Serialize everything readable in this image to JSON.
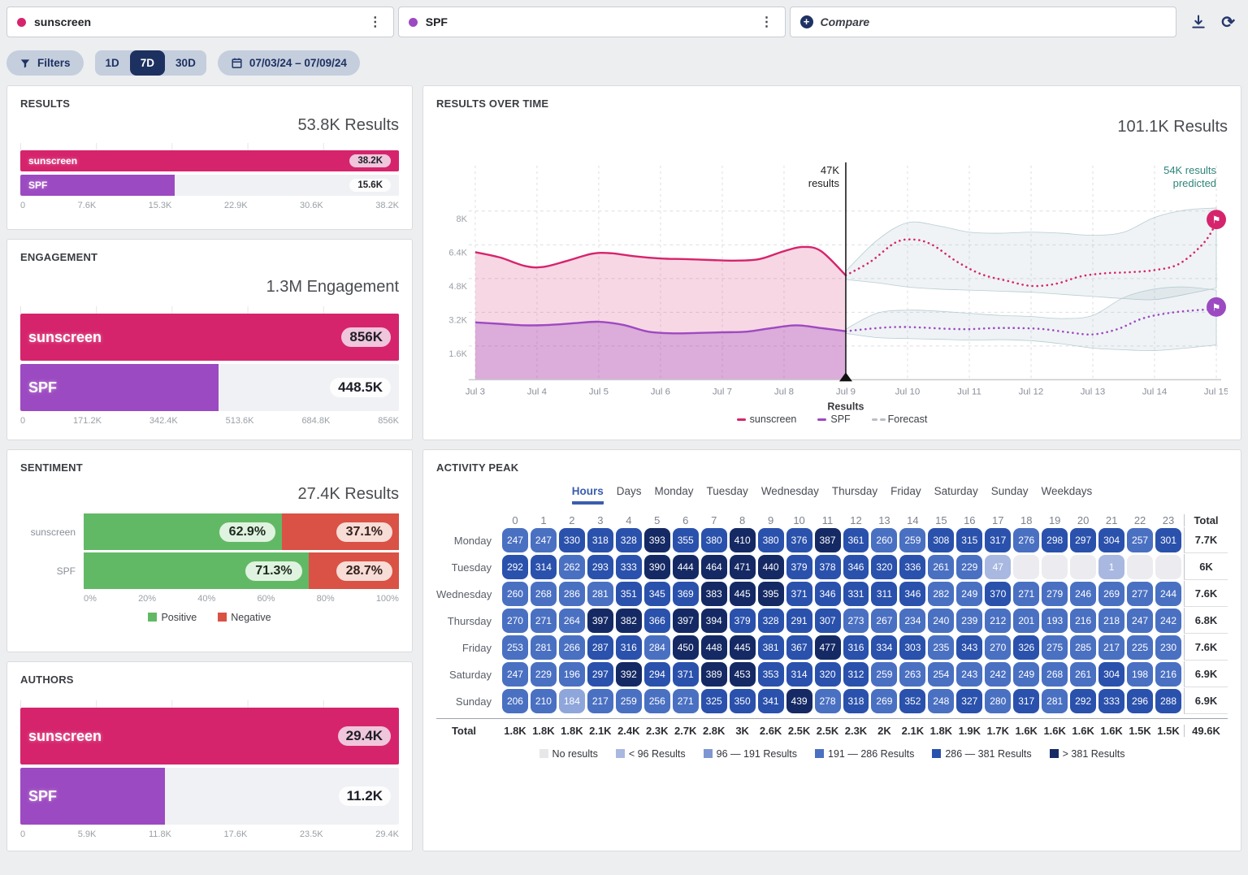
{
  "colors": {
    "pink": "#d6246c",
    "purple": "#9c4ac1",
    "navy": "#1d3160",
    "green": "#62b965",
    "red": "#d95245",
    "teal": "#2f857b",
    "forecast_gray": "#b9bec6"
  },
  "icons": {
    "kebab": "⋮",
    "plus": "+",
    "refresh": "⟳",
    "flag": "⚑"
  },
  "top_bar": {
    "queries": [
      {
        "label": "sunscreen",
        "color": "#d6246c"
      },
      {
        "label": "SPF",
        "color": "#9c4ac1"
      }
    ],
    "compare_label": "Compare"
  },
  "filters_bar": {
    "filters_label": "Filters",
    "ranges": [
      "1D",
      "7D",
      "30D"
    ],
    "active_range": "7D",
    "date_range": "07/03/24 – 07/09/24"
  },
  "panels": {
    "results": {
      "title": "RESULTS",
      "total": "53.8K Results",
      "bars": [
        {
          "label": "sunscreen",
          "value": "38.2K",
          "pct": 100,
          "badge": "pink"
        },
        {
          "label": "SPF",
          "value": "15.6K",
          "pct": 40.8,
          "badge": "white"
        }
      ],
      "axis": [
        "0",
        "7.6K",
        "15.3K",
        "22.9K",
        "30.6K",
        "38.2K"
      ]
    },
    "engagement": {
      "title": "ENGAGEMENT",
      "total": "1.3M Engagement",
      "bars": [
        {
          "label": "sunscreen",
          "value": "856K",
          "pct": 100,
          "badge": "pink"
        },
        {
          "label": "SPF",
          "value": "448.5K",
          "pct": 52.4,
          "badge": "white"
        }
      ],
      "axis": [
        "0",
        "171.2K",
        "342.4K",
        "513.6K",
        "684.8K",
        "856K"
      ]
    },
    "sentiment": {
      "title": "SENTIMENT",
      "total": "27.4K Results",
      "rows": [
        {
          "label": "sunscreen",
          "positive": "62.9%",
          "negative": "37.1%",
          "pos_pct": 62.9,
          "neg_pct": 37.1
        },
        {
          "label": "SPF",
          "positive": "71.3%",
          "negative": "28.7%",
          "pos_pct": 71.3,
          "neg_pct": 28.7
        }
      ],
      "axis": [
        "0%",
        "20%",
        "40%",
        "60%",
        "80%",
        "100%"
      ],
      "legend": {
        "positive": "Positive",
        "negative": "Negative"
      }
    },
    "authors": {
      "title": "AUTHORS",
      "bars": [
        {
          "label": "sunscreen",
          "value": "29.4K",
          "pct": 100,
          "badge": "pink"
        },
        {
          "label": "SPF",
          "value": "11.2K",
          "pct": 38.1,
          "badge": "white"
        }
      ],
      "axis": [
        "0",
        "5.9K",
        "11.8K",
        "17.6K",
        "23.5K",
        "29.4K"
      ]
    },
    "results_over_time": {
      "title": "RESULTS OVER TIME",
      "total": "101.1K Results",
      "annotation": {
        "line1": "47K",
        "line2": "results"
      },
      "prediction": {
        "line1": "54K results",
        "line2": "predicted"
      },
      "x_axis_title": "Results",
      "x_labels": [
        "Jul 3",
        "Jul 4",
        "Jul 5",
        "Jul 6",
        "Jul 7",
        "Jul 8",
        "Jul 9",
        "Jul 10",
        "Jul 11",
        "Jul 12",
        "Jul 13",
        "Jul 14",
        "Jul 15"
      ],
      "y_ticks": [
        {
          "label": "8K",
          "v": 8
        },
        {
          "label": "6.4K",
          "v": 6.4
        },
        {
          "label": "4.8K",
          "v": 4.8
        },
        {
          "label": "3.2K",
          "v": 3.2
        },
        {
          "label": "1.6K",
          "v": 1.6
        }
      ],
      "legend": [
        {
          "label": "sunscreen",
          "color": "#d6246c"
        },
        {
          "label": "SPF",
          "color": "#9c4ac1"
        },
        {
          "label": "Forecast",
          "color": "#b9bec6"
        }
      ],
      "chart_data": {
        "type": "line",
        "x_unit": "day-index (Jul 3 = 0 ... Jul 15 = 12)",
        "y_unit": "K results",
        "forecast_start_x": 6,
        "sunscreen_history": [
          [
            0,
            6.05
          ],
          [
            0.4,
            5.8
          ],
          [
            0.8,
            5.4
          ],
          [
            1.1,
            5.35
          ],
          [
            1.5,
            5.65
          ],
          [
            1.9,
            5.98
          ],
          [
            2.2,
            6.0
          ],
          [
            2.6,
            5.85
          ],
          [
            3,
            5.75
          ],
          [
            3.4,
            5.72
          ],
          [
            3.8,
            5.68
          ],
          [
            4.2,
            5.65
          ],
          [
            4.6,
            5.72
          ],
          [
            5,
            6.1
          ],
          [
            5.3,
            6.3
          ],
          [
            5.6,
            6.1
          ],
          [
            6,
            4.95
          ]
        ],
        "spf_history": [
          [
            0,
            2.72
          ],
          [
            0.4,
            2.65
          ],
          [
            0.8,
            2.58
          ],
          [
            1.2,
            2.6
          ],
          [
            1.6,
            2.68
          ],
          [
            2,
            2.75
          ],
          [
            2.4,
            2.6
          ],
          [
            2.8,
            2.28
          ],
          [
            3.2,
            2.2
          ],
          [
            3.6,
            2.22
          ],
          [
            4,
            2.25
          ],
          [
            4.4,
            2.28
          ],
          [
            4.8,
            2.45
          ],
          [
            5.2,
            2.58
          ],
          [
            5.6,
            2.45
          ],
          [
            6,
            2.3
          ]
        ],
        "sunscreen_forecast": [
          [
            6,
            4.95
          ],
          [
            6.4,
            5.6
          ],
          [
            6.8,
            6.5
          ],
          [
            7.1,
            6.65
          ],
          [
            7.4,
            6.4
          ],
          [
            7.8,
            5.6
          ],
          [
            8.2,
            5.0
          ],
          [
            8.6,
            4.7
          ],
          [
            9,
            4.45
          ],
          [
            9.4,
            4.55
          ],
          [
            9.8,
            4.9
          ],
          [
            10.2,
            5.05
          ],
          [
            10.6,
            5.1
          ],
          [
            11,
            5.2
          ],
          [
            11.4,
            5.5
          ],
          [
            11.8,
            6.5
          ],
          [
            12,
            7.45
          ]
        ],
        "sunscreen_band_upper": [
          [
            6,
            5.15
          ],
          [
            6.5,
            6.6
          ],
          [
            7,
            7.45
          ],
          [
            7.5,
            7.3
          ],
          [
            8,
            7.0
          ],
          [
            8.5,
            6.95
          ],
          [
            9,
            7.0
          ],
          [
            9.5,
            6.95
          ],
          [
            10,
            6.85
          ],
          [
            10.5,
            7.0
          ],
          [
            11,
            7.7
          ],
          [
            11.5,
            8.05
          ],
          [
            12,
            8.15
          ]
        ],
        "sunscreen_band_lower": [
          [
            6,
            4.75
          ],
          [
            6.5,
            4.6
          ],
          [
            7,
            4.4
          ],
          [
            7.5,
            4.3
          ],
          [
            8,
            4.25
          ],
          [
            8.5,
            4.2
          ],
          [
            9,
            4.15
          ],
          [
            9.5,
            4.05
          ],
          [
            10,
            3.95
          ],
          [
            10.5,
            3.85
          ],
          [
            11,
            3.8
          ],
          [
            11.5,
            4.05
          ],
          [
            12,
            4.35
          ]
        ],
        "spf_forecast": [
          [
            6,
            2.3
          ],
          [
            6.4,
            2.42
          ],
          [
            6.8,
            2.5
          ],
          [
            7.2,
            2.48
          ],
          [
            7.6,
            2.42
          ],
          [
            8,
            2.4
          ],
          [
            8.4,
            2.45
          ],
          [
            8.8,
            2.45
          ],
          [
            9.2,
            2.4
          ],
          [
            9.6,
            2.25
          ],
          [
            10,
            2.15
          ],
          [
            10.4,
            2.4
          ],
          [
            10.8,
            2.9
          ],
          [
            11.2,
            3.15
          ],
          [
            11.6,
            3.28
          ],
          [
            12,
            3.35
          ]
        ],
        "spf_band_upper": [
          [
            6,
            2.4
          ],
          [
            6.5,
            3.15
          ],
          [
            7,
            3.3
          ],
          [
            7.5,
            3.25
          ],
          [
            8,
            3.15
          ],
          [
            8.5,
            3.05
          ],
          [
            9,
            3.0
          ],
          [
            9.5,
            2.9
          ],
          [
            10,
            3.05
          ],
          [
            10.5,
            3.9
          ],
          [
            11,
            4.3
          ],
          [
            11.5,
            4.4
          ],
          [
            12,
            4.25
          ]
        ],
        "spf_band_lower": [
          [
            6,
            2.2
          ],
          [
            6.5,
            2.0
          ],
          [
            7,
            1.95
          ],
          [
            7.5,
            1.92
          ],
          [
            8,
            1.88
          ],
          [
            8.5,
            1.9
          ],
          [
            9,
            1.85
          ],
          [
            9.5,
            1.7
          ],
          [
            10,
            1.5
          ],
          [
            10.5,
            1.42
          ],
          [
            11,
            1.38
          ],
          [
            11.5,
            1.5
          ],
          [
            12,
            1.65
          ]
        ],
        "flags": [
          {
            "x": 12,
            "y": 7.6,
            "color": "#d6246c"
          },
          {
            "x": 12,
            "y": 3.45,
            "color": "#9c4ac1"
          }
        ]
      }
    },
    "activity_peak": {
      "title": "ACTIVITY PEAK",
      "tabs": [
        "Hours",
        "Days",
        "Monday",
        "Tuesday",
        "Wednesday",
        "Thursday",
        "Friday",
        "Saturday",
        "Sunday",
        "Weekdays"
      ],
      "active_tab": "Hours",
      "hours": [
        "0",
        "1",
        "2",
        "3",
        "4",
        "5",
        "6",
        "7",
        "8",
        "9",
        "10",
        "11",
        "12",
        "13",
        "14",
        "15",
        "16",
        "17",
        "18",
        "19",
        "20",
        "21",
        "22",
        "23"
      ],
      "total_label": "Total",
      "days": [
        {
          "name": "Monday",
          "values": [
            247,
            247,
            330,
            318,
            328,
            393,
            355,
            380,
            410,
            380,
            376,
            387,
            361,
            260,
            259,
            308,
            315,
            317,
            276,
            298,
            297,
            304,
            257,
            301
          ],
          "total": "7.7K"
        },
        {
          "name": "Tuesday",
          "values": [
            292,
            314,
            262,
            293,
            333,
            390,
            444,
            464,
            471,
            440,
            379,
            378,
            346,
            320,
            336,
            261,
            229,
            47,
            null,
            null,
            null,
            1,
            null,
            null
          ],
          "total": "6K"
        },
        {
          "name": "Wednesday",
          "values": [
            260,
            268,
            286,
            281,
            351,
            345,
            369,
            383,
            445,
            395,
            371,
            346,
            331,
            311,
            346,
            282,
            249,
            370,
            271,
            279,
            246,
            269,
            277,
            244
          ],
          "total": "7.6K"
        },
        {
          "name": "Thursday",
          "values": [
            270,
            271,
            264,
            397,
            382,
            366,
            397,
            394,
            379,
            328,
            291,
            307,
            273,
            267,
            234,
            240,
            239,
            212,
            201,
            193,
            216,
            218,
            247,
            242
          ],
          "total": "6.8K"
        },
        {
          "name": "Friday",
          "values": [
            253,
            281,
            266,
            287,
            316,
            284,
            450,
            448,
            445,
            381,
            367,
            477,
            316,
            334,
            303,
            235,
            343,
            270,
            326,
            275,
            285,
            217,
            225,
            230
          ],
          "total": "7.6K"
        },
        {
          "name": "Saturday",
          "values": [
            247,
            229,
            196,
            297,
            392,
            294,
            371,
            389,
            453,
            353,
            314,
            320,
            312,
            259,
            263,
            254,
            243,
            242,
            249,
            268,
            261,
            304,
            198,
            216
          ],
          "total": "6.9K"
        },
        {
          "name": "Sunday",
          "values": [
            206,
            210,
            184,
            217,
            259,
            256,
            271,
            325,
            350,
            341,
            439,
            278,
            318,
            269,
            352,
            248,
            327,
            280,
            317,
            281,
            292,
            333,
            296,
            288
          ],
          "total": "6.9K"
        }
      ],
      "totals_row": {
        "label": "Total",
        "values": [
          "1.8K",
          "1.8K",
          "1.8K",
          "2.1K",
          "2.4K",
          "2.3K",
          "2.7K",
          "2.8K",
          "3K",
          "2.6K",
          "2.5K",
          "2.5K",
          "2.3K",
          "2K",
          "2.1K",
          "1.8K",
          "1.9K",
          "1.7K",
          "1.6K",
          "1.6K",
          "1.6K",
          "1.6K",
          "1.5K",
          "1.5K"
        ],
        "grand": "49.6K"
      },
      "cell_colors": {
        "no_results": "#ececf0",
        "b1": "#a9b8e0",
        "b2": "#8ea6da",
        "b3": "#4a70c2",
        "b4": "#2a51ac",
        "b5": "#152a64"
      },
      "legend": {
        "labels": [
          "No results",
          "< 96 Results",
          "96 — 191 Results",
          "191 — 286 Results",
          "286 — 381 Results",
          "> 381 Results"
        ],
        "colors": [
          "#e7e7ea",
          "#a9b8e0",
          "#7e97d2",
          "#4a70c2",
          "#2a51ac",
          "#152a64"
        ]
      }
    }
  }
}
